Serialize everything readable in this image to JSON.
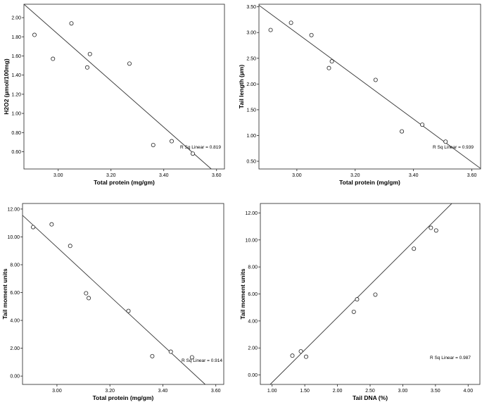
{
  "chart_data": [
    {
      "type": "scatter",
      "title": "",
      "xlabel": "Total protein (mg/gm)",
      "ylabel": "H2O2 (µmol/100mg)",
      "xlim": [
        2.87,
        3.63
      ],
      "ylim": [
        0.42,
        2.14
      ],
      "xticks": [
        3.0,
        3.2,
        3.4,
        3.6
      ],
      "yticks": [
        0.6,
        0.8,
        1.0,
        1.2,
        1.4,
        1.6,
        1.8,
        2.0
      ],
      "grid": false,
      "points": [
        {
          "x": 2.91,
          "y": 1.82
        },
        {
          "x": 2.98,
          "y": 1.57
        },
        {
          "x": 3.05,
          "y": 1.94
        },
        {
          "x": 3.11,
          "y": 1.48
        },
        {
          "x": 3.12,
          "y": 1.62
        },
        {
          "x": 3.27,
          "y": 1.52
        },
        {
          "x": 3.36,
          "y": 0.67
        },
        {
          "x": 3.43,
          "y": 0.71
        },
        {
          "x": 3.51,
          "y": 0.58
        }
      ],
      "fit_line": {
        "x1": 2.87,
        "y1": 2.14,
        "x2": 3.58,
        "y2": 0.42
      },
      "annotation": "R Sq Linear = 0.819"
    },
    {
      "type": "scatter",
      "title": "",
      "xlabel": "Total protein (mg/gm)",
      "ylabel": "Tail length (µm)",
      "xlim": [
        2.87,
        3.63
      ],
      "ylim": [
        0.35,
        3.55
      ],
      "xticks": [
        3.0,
        3.2,
        3.4,
        3.6
      ],
      "yticks": [
        0.5,
        1.0,
        1.5,
        2.0,
        2.5,
        3.0,
        3.5
      ],
      "grid": false,
      "points": [
        {
          "x": 2.91,
          "y": 3.05
        },
        {
          "x": 2.98,
          "y": 3.19
        },
        {
          "x": 3.05,
          "y": 2.95
        },
        {
          "x": 3.11,
          "y": 2.31
        },
        {
          "x": 3.12,
          "y": 2.44
        },
        {
          "x": 3.27,
          "y": 2.08
        },
        {
          "x": 3.36,
          "y": 1.08
        },
        {
          "x": 3.43,
          "y": 1.21
        },
        {
          "x": 3.51,
          "y": 0.88
        }
      ],
      "fit_line": {
        "x1": 2.87,
        "y1": 3.53,
        "x2": 3.63,
        "y2": 0.36
      },
      "annotation": "R Sq Linear = 0.939"
    },
    {
      "type": "scatter",
      "title": "",
      "xlabel": "Total protein (mg/gm)",
      "ylabel": "Tail moment units",
      "xlim": [
        2.87,
        3.63
      ],
      "ylim": [
        -0.6,
        12.4
      ],
      "xticks": [
        3.0,
        3.2,
        3.4,
        3.6
      ],
      "yticks": [
        0.0,
        2.0,
        4.0,
        6.0,
        8.0,
        10.0,
        12.0
      ],
      "grid": false,
      "points": [
        {
          "x": 2.91,
          "y": 10.7
        },
        {
          "x": 2.98,
          "y": 10.9
        },
        {
          "x": 3.05,
          "y": 9.35
        },
        {
          "x": 3.11,
          "y": 5.95
        },
        {
          "x": 3.12,
          "y": 5.6
        },
        {
          "x": 3.27,
          "y": 4.68
        },
        {
          "x": 3.36,
          "y": 1.43
        },
        {
          "x": 3.43,
          "y": 1.75
        },
        {
          "x": 3.51,
          "y": 1.35
        }
      ],
      "fit_line": {
        "x1": 2.87,
        "y1": 11.55,
        "x2": 3.56,
        "y2": -0.6
      },
      "annotation": "R Sq Linear = 0.914"
    },
    {
      "type": "scatter",
      "title": "",
      "xlabel": "Tail DNA (%)",
      "ylabel": "Tail moment units",
      "xlim": [
        0.82,
        4.18
      ],
      "ylim": [
        -0.7,
        12.7
      ],
      "xticks": [
        1.0,
        1.5,
        2.0,
        2.5,
        3.0,
        3.5,
        4.0
      ],
      "yticks": [
        0.0,
        2.0,
        4.0,
        6.0,
        8.0,
        10.0,
        12.0
      ],
      "grid": false,
      "points": [
        {
          "x": 1.31,
          "y": 1.43
        },
        {
          "x": 1.44,
          "y": 1.75
        },
        {
          "x": 1.52,
          "y": 1.35
        },
        {
          "x": 2.25,
          "y": 4.68
        },
        {
          "x": 2.3,
          "y": 5.6
        },
        {
          "x": 2.58,
          "y": 5.95
        },
        {
          "x": 3.17,
          "y": 9.35
        },
        {
          "x": 3.43,
          "y": 10.9
        },
        {
          "x": 3.51,
          "y": 10.7
        }
      ],
      "fit_line": {
        "x1": 0.97,
        "y1": -0.7,
        "x2": 3.75,
        "y2": 12.7
      },
      "annotation": "R Sq Linear = 0.987"
    }
  ]
}
